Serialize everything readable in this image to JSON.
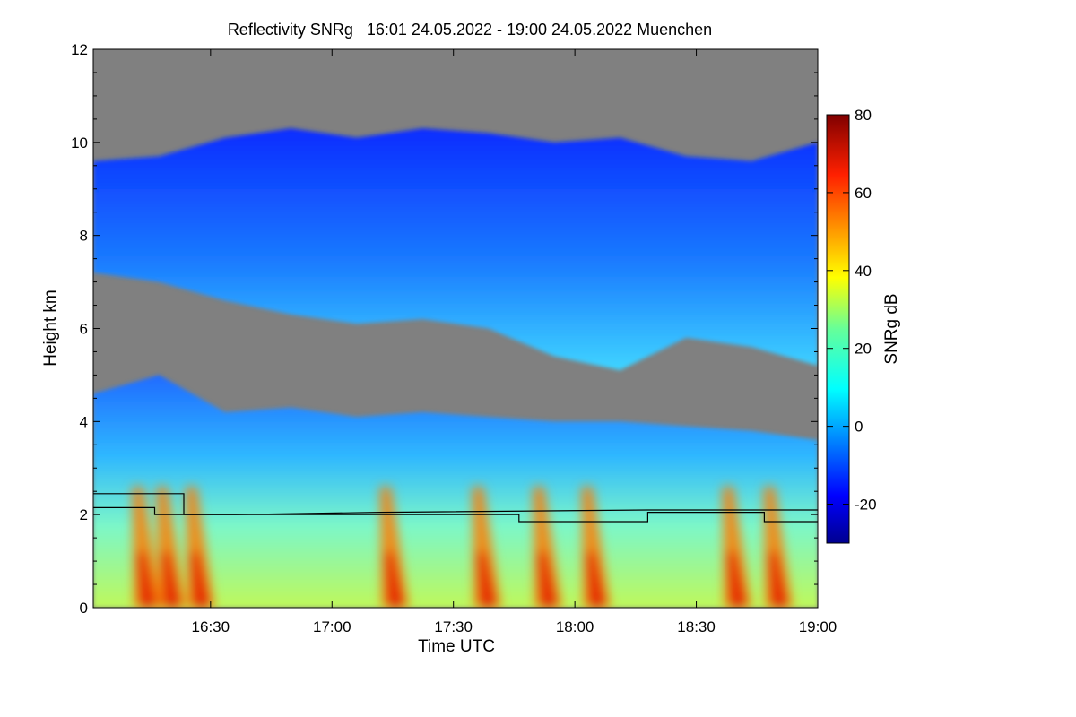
{
  "chart_data": {
    "type": "heatmap",
    "title": "Reflectivity SNRg   16:01 24.05.2022 - 19:00 24.05.2022 Muenchen",
    "xlabel": "Time UTC",
    "ylabel": "Height km",
    "colorbar_label": "SNRg dB",
    "x_range_hours": [
      16.017,
      19.0
    ],
    "ylim": [
      0,
      12
    ],
    "x_ticks": [
      {
        "label": "16:30",
        "hour": 16.5
      },
      {
        "label": "17:00",
        "hour": 17.0
      },
      {
        "label": "17:30",
        "hour": 17.5
      },
      {
        "label": "18:00",
        "hour": 18.0
      },
      {
        "label": "18:30",
        "hour": 18.5
      },
      {
        "label": "19:00",
        "hour": 19.0
      }
    ],
    "y_ticks": [
      0,
      2,
      4,
      6,
      8,
      10,
      12
    ],
    "colorbar_range": [
      -30,
      80
    ],
    "colorbar_ticks": [
      -20,
      0,
      20,
      40,
      60,
      80
    ],
    "colormap": "jet",
    "no_data_color": "#808080",
    "cloud_layers": {
      "upper_base_km": [
        7.2,
        7.0,
        6.6,
        6.3,
        6.1,
        6.2,
        6.0,
        5.4,
        5.1,
        5.8,
        5.6,
        5.2
      ],
      "upper_top_km": [
        9.6,
        9.7,
        10.1,
        10.3,
        10.1,
        10.3,
        10.2,
        10.0,
        10.1,
        9.7,
        9.6,
        10.0
      ],
      "lower_top_km": [
        4.6,
        5.0,
        4.2,
        4.3,
        4.1,
        4.2,
        4.1,
        4.0,
        4.0,
        3.9,
        3.8,
        3.6
      ],
      "precip_streak_hours": [
        16.2,
        16.3,
        16.42,
        17.22,
        17.6,
        17.85,
        18.05,
        18.63,
        18.8
      ]
    },
    "overlay_lines": [
      {
        "name": "line-upper",
        "color": "#000000",
        "points": [
          [
            16.017,
            2.45
          ],
          [
            16.39,
            2.45
          ],
          [
            16.39,
            2.0
          ],
          [
            16.6,
            2.0
          ],
          [
            17.2,
            2.05
          ],
          [
            18.3,
            2.1
          ],
          [
            18.78,
            2.1
          ],
          [
            19.0,
            2.1
          ]
        ]
      },
      {
        "name": "line-lower",
        "color": "#000000",
        "points": [
          [
            16.017,
            2.15
          ],
          [
            16.27,
            2.15
          ],
          [
            16.27,
            2.0
          ],
          [
            17.2,
            2.0
          ],
          [
            17.77,
            2.0
          ],
          [
            17.77,
            1.85
          ],
          [
            18.3,
            1.85
          ],
          [
            18.3,
            2.05
          ],
          [
            18.78,
            2.05
          ],
          [
            18.78,
            1.85
          ],
          [
            19.0,
            1.85
          ]
        ]
      }
    ]
  }
}
